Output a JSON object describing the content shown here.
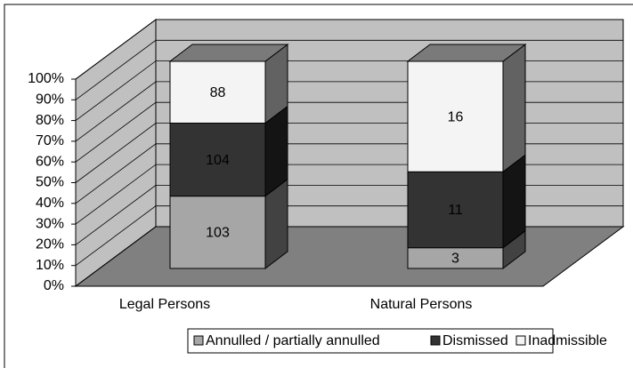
{
  "chart_data": {
    "type": "bar3d_stacked100",
    "categories": [
      "Legal Persons",
      "Natural Persons"
    ],
    "series": [
      {
        "name": "Annulled / partially annulled",
        "color": "#a6a6a6",
        "values": [
          103,
          3
        ]
      },
      {
        "name": "Dismissed",
        "color": "#333333",
        "values": [
          104,
          11
        ]
      },
      {
        "name": "Inadmissible",
        "color": "#f4f4f4",
        "values": [
          88,
          16
        ]
      }
    ],
    "ylim": [
      0,
      100
    ],
    "yticks": [
      {
        "value": 0,
        "label": "0%"
      },
      {
        "value": 10,
        "label": "10%"
      },
      {
        "value": 20,
        "label": "20%"
      },
      {
        "value": 30,
        "label": "30%"
      },
      {
        "value": 40,
        "label": "40%"
      },
      {
        "value": 50,
        "label": "50%"
      },
      {
        "value": 60,
        "label": "60%"
      },
      {
        "value": 70,
        "label": "70%"
      },
      {
        "value": 80,
        "label": "80%"
      },
      {
        "value": 90,
        "label": "90%"
      },
      {
        "value": 100,
        "label": "100%"
      }
    ],
    "grid": true,
    "legend": "bottom"
  }
}
